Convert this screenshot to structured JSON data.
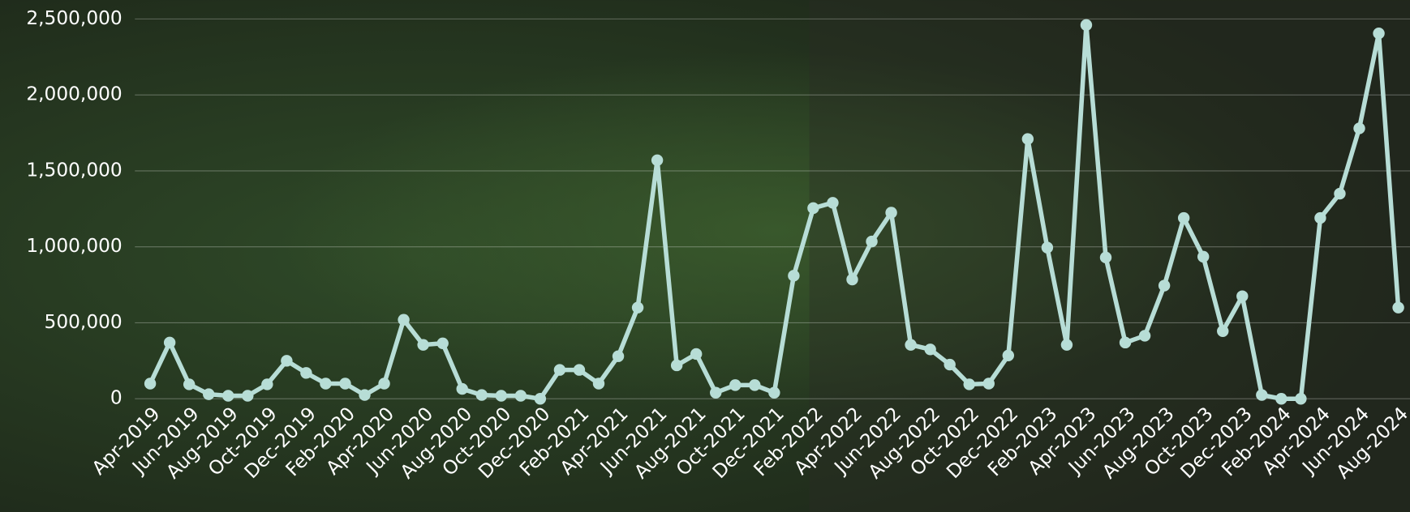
{
  "chart_data": {
    "type": "line",
    "categories": [
      "Apr-2019",
      null,
      "Jun-2019",
      null,
      "Aug-2019",
      null,
      "Oct-2019",
      null,
      "Dec-2019",
      null,
      "Feb-2020",
      null,
      "Apr-2020",
      null,
      "Jun-2020",
      null,
      "Aug-2020",
      null,
      "Oct-2020",
      null,
      "Dec-2020",
      null,
      "Feb-2021",
      null,
      "Apr-2021",
      null,
      "Jun-2021",
      null,
      "Aug-2021",
      null,
      "Oct-2021",
      null,
      "Dec-2021",
      null,
      "Feb-2022",
      null,
      "Apr-2022",
      null,
      "Jun-2022",
      null,
      "Aug-2022",
      null,
      "Oct-2022",
      null,
      "Dec-2022",
      null,
      "Feb-2023",
      null,
      "Apr-2023",
      null,
      "Jun-2023",
      null,
      "Aug-2023",
      null,
      "Oct-2023",
      null,
      "Dec-2023",
      null,
      "Feb-2024",
      null,
      "Apr-2024",
      null,
      "Jun-2024",
      null,
      "Aug-2024"
    ],
    "values": [
      100000,
      370000,
      95000,
      30000,
      20000,
      20000,
      95000,
      250000,
      170000,
      100000,
      100000,
      25000,
      100000,
      520000,
      355000,
      365000,
      65000,
      25000,
      20000,
      20000,
      0,
      190000,
      190000,
      100000,
      280000,
      600000,
      1570000,
      220000,
      295000,
      40000,
      90000,
      90000,
      40000,
      810000,
      1255000,
      1290000,
      785000,
      1035000,
      1225000,
      355000,
      325000,
      225000,
      95000,
      100000,
      285000,
      1710000,
      995000,
      355000,
      2460000,
      930000,
      370000,
      415000,
      745000,
      1190000,
      935000,
      445000,
      675000,
      25000,
      0,
      0,
      1190000,
      1350000,
      1780000,
      2405000,
      600000
    ],
    "color": "#b7ddd6",
    "ylim": [
      0,
      2500000
    ],
    "yticks": [
      0,
      {
        "value": 500000,
        "label": "500,000"
      },
      {
        "value": 1000000,
        "label": "1,000,000"
      },
      {
        "value": 1500000,
        "label": "1,500,000"
      },
      {
        "value": 2000000,
        "label": "2,000,000"
      },
      {
        "value": 2500000,
        "label": "2,500,000"
      }
    ],
    "grid": true
  }
}
